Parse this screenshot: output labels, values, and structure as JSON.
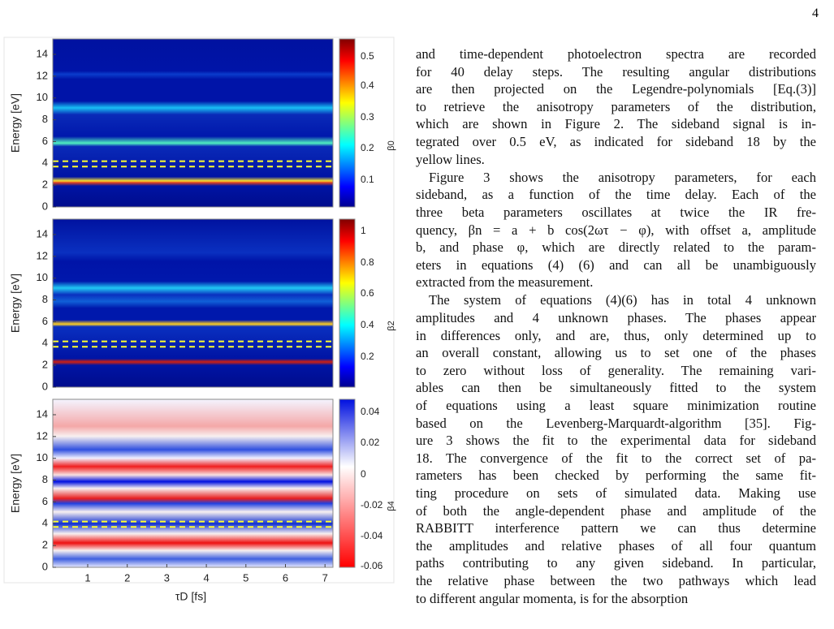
{
  "page_number": "4",
  "figure": {
    "panels": [
      {
        "y_label": "Energy [eV]",
        "y_ticks": [
          "0",
          "2",
          "4",
          "6",
          "8",
          "10",
          "12",
          "14"
        ],
        "colorbar_ticks": [
          "0.5",
          "0.4",
          "0.3",
          "0.2",
          "0.1"
        ],
        "colorbar_label": "β0"
      },
      {
        "y_label": "Energy [eV]",
        "y_ticks": [
          "0",
          "2",
          "4",
          "6",
          "8",
          "10",
          "12",
          "14"
        ],
        "colorbar_ticks": [
          "1",
          "0.8",
          "0.6",
          "0.4",
          "0.2"
        ],
        "colorbar_label": "β2"
      },
      {
        "y_label": "Energy [eV]",
        "y_ticks": [
          "0",
          "2",
          "4",
          "6",
          "8",
          "10",
          "12",
          "14"
        ],
        "colorbar_ticks": [
          "0.04",
          "0.02",
          "0",
          "-0.02",
          "-0.04",
          "-0.06"
        ],
        "colorbar_label": "β4"
      }
    ],
    "x_ticks": [
      "1",
      "2",
      "3",
      "4",
      "5",
      "6",
      "7"
    ],
    "x_label": "τD [fs]"
  },
  "text": {
    "paragraphs": [
      [
        "and time-dependent photoelectron spectra are recorded",
        "for 40 delay steps. The resulting angular distributions",
        "are then projected on the Legendre-polynomials [Eq.(3)]",
        "to retrieve the anisotropy parameters of the distribution,",
        "which are shown in Figure 2. The sideband signal is in-",
        "tegrated over 0.5 eV, as indicated for sideband 18 by the",
        "yellow lines."
      ],
      [
        "Figure 3 shows the anisotropy parameters, for each",
        "sideband, as a function of the time delay. Each of the",
        "three beta parameters oscillates at twice the IR fre-",
        "quency, βn = a + b cos(2ωτ − φ), with offset a, amplitude",
        "b, and phase φ, which are directly related to the param-",
        "eters in equations (4)  (6) and can all be unambiguously",
        "extracted from the measurement."
      ],
      [
        "The system of equations (4)(6) has in total 4 unknown",
        "amplitudes and 4 unknown phases. The phases appear",
        "in differences only, and are, thus, only determined up to",
        "an overall constant, allowing us to set one of the phases",
        "to zero without loss of generality. The remaining vari-",
        "ables can then be simultaneously fitted to the system",
        "of equations using a least square minimization routine",
        "based on the Levenberg-Marquardt-algorithm [35]. Fig-",
        "ure 3 shows the fit to the experimental data for sideband",
        "18. The convergence of the fit to the correct set of pa-",
        "rameters has been checked by performing the same fit-",
        "ting procedure on sets of simulated data. Making use",
        "of both the angle-dependent phase and amplitude of the",
        "RABBITT interference pattern we can thus determine",
        "the amplitudes and relative phases of all four quantum",
        "paths contributing to any given sideband. In particular,",
        "the relative phase between the two pathways which lead",
        "to different angular momenta, is for the absorption"
      ]
    ]
  }
}
